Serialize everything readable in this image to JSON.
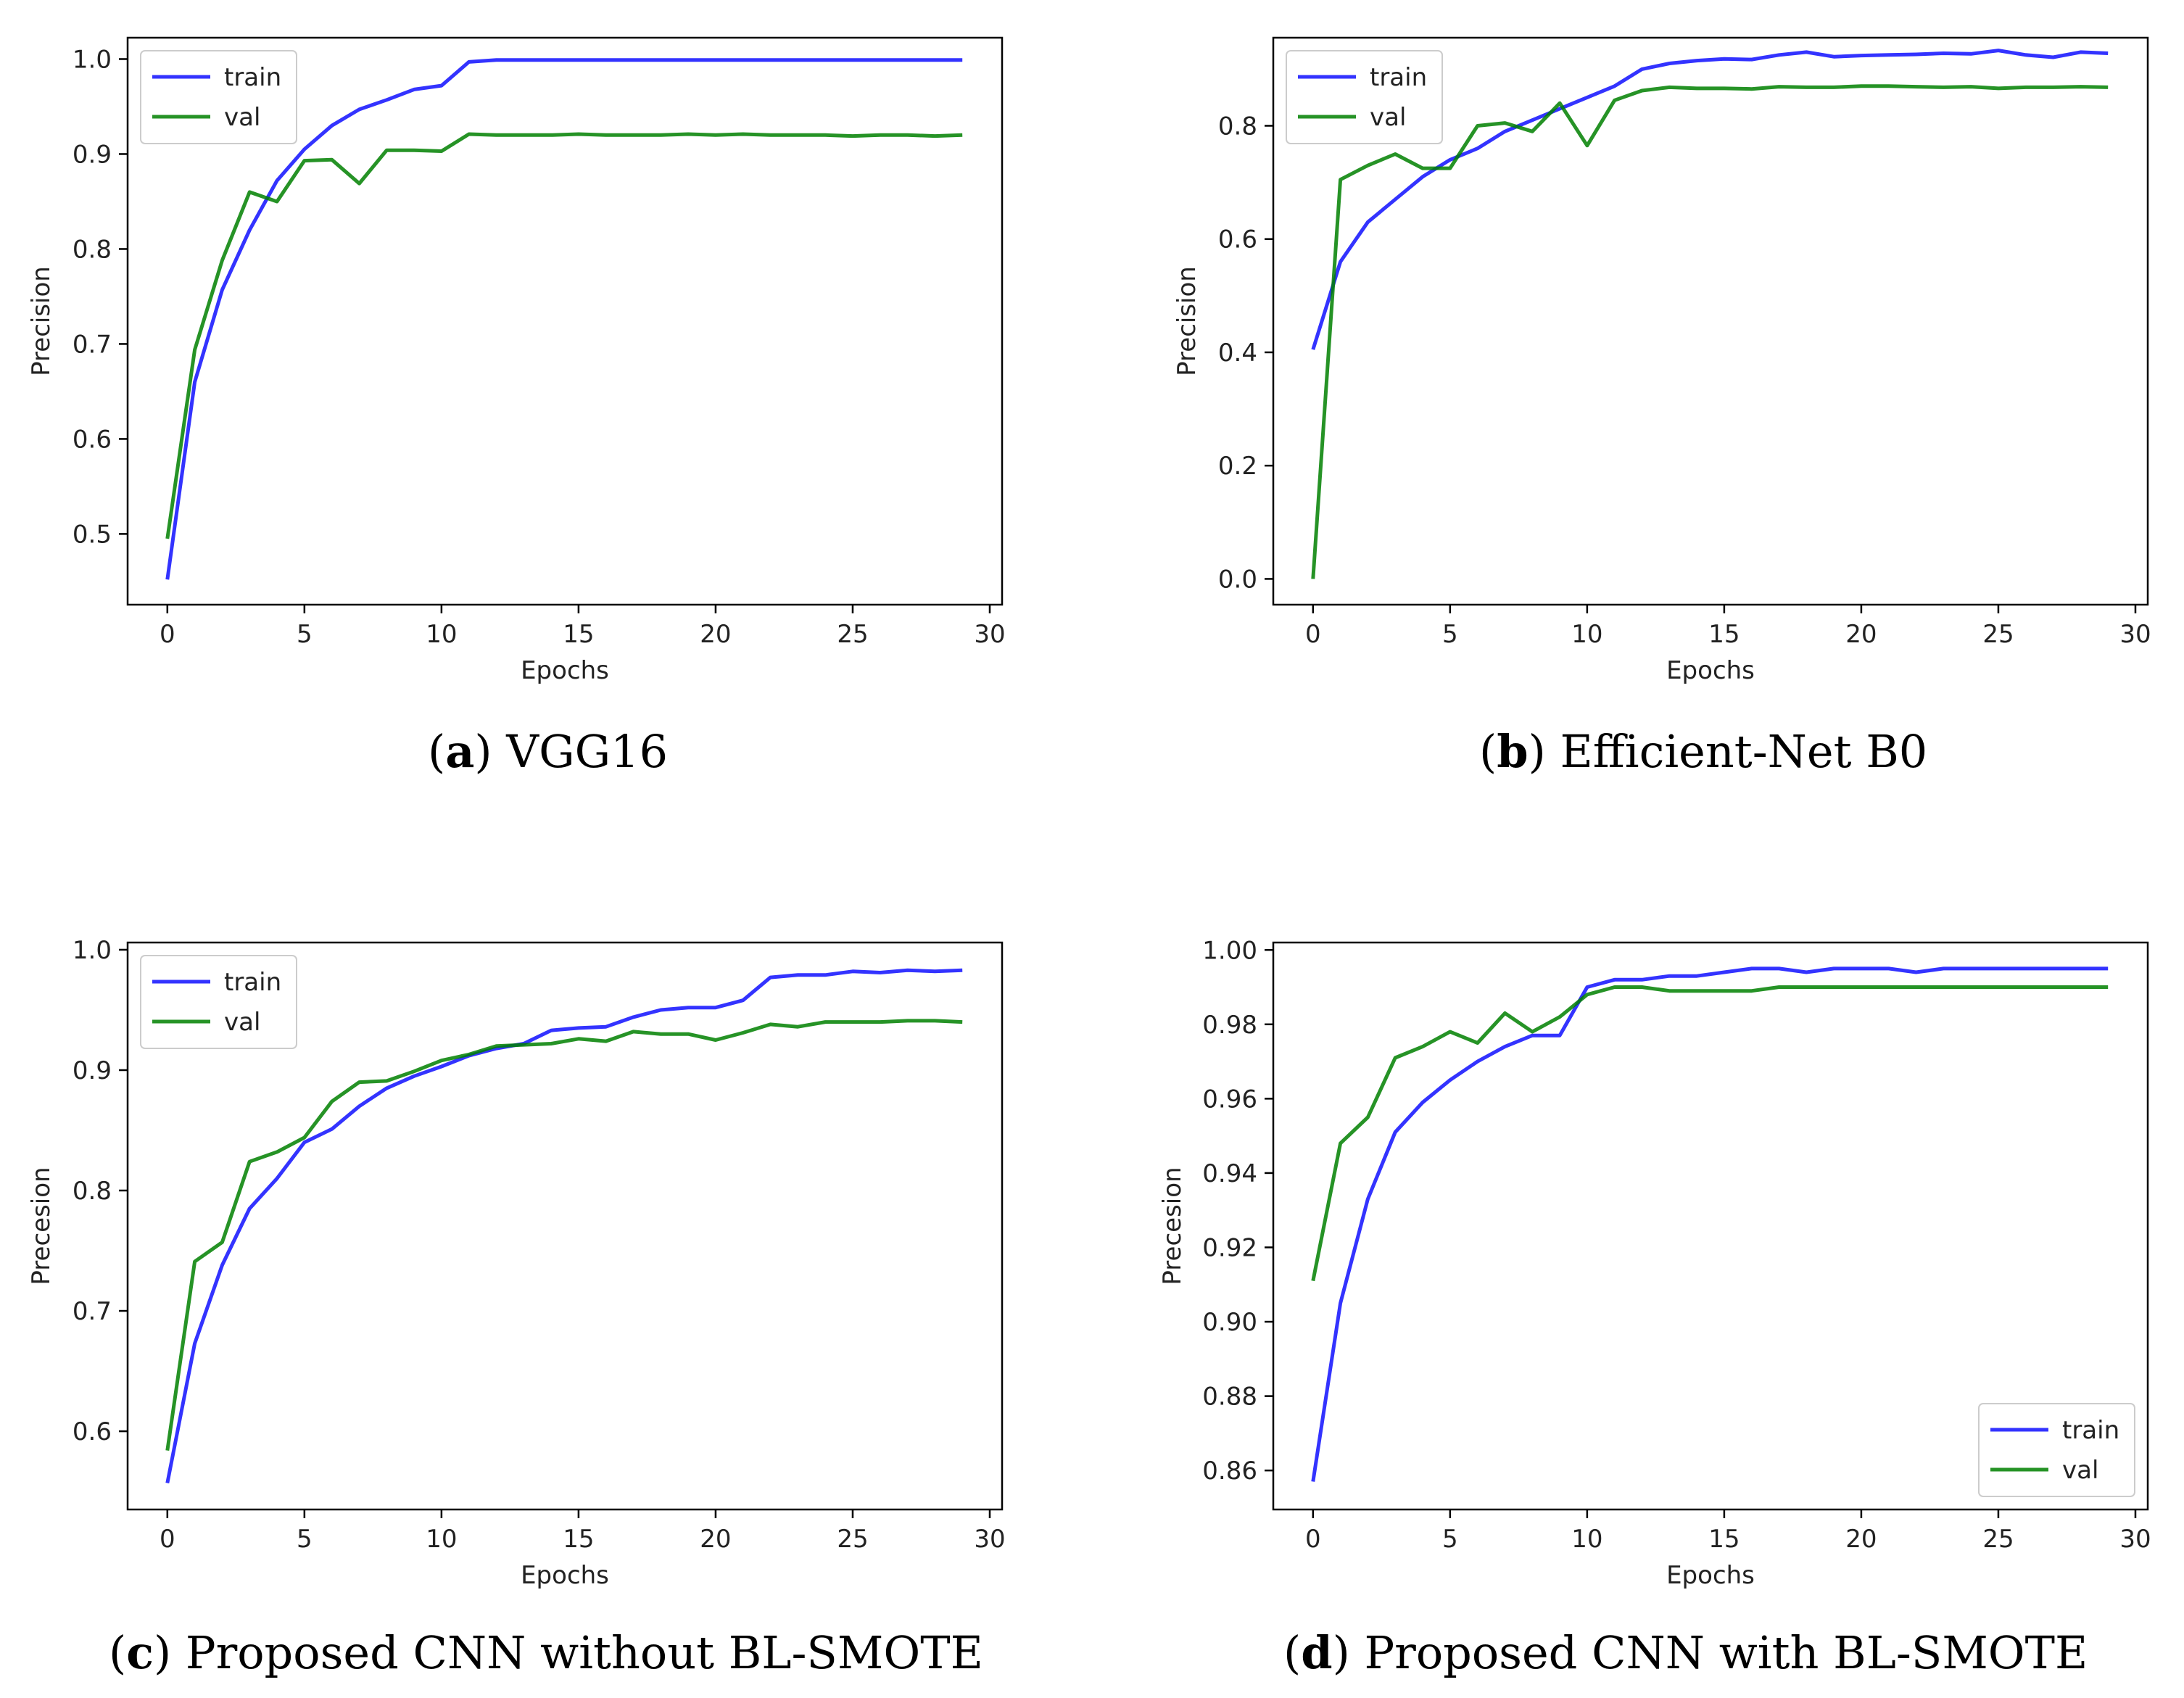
{
  "chart_data": [
    {
      "type": "line",
      "title": "",
      "xlabel": "Epochs",
      "ylabel": "Precision",
      "xlim": [
        -1.45,
        30.45
      ],
      "ylim": [
        0.4255,
        1.0225
      ],
      "xticks": [
        0,
        5,
        10,
        15,
        20,
        25,
        30
      ],
      "yticks": [
        0.5,
        0.6,
        0.7,
        0.8,
        0.9,
        1.0
      ],
      "ytick_labels": [
        "0.5",
        "0.6",
        "0.7",
        "0.8",
        "0.9",
        "1.0"
      ],
      "legend": "top-left",
      "series": [
        {
          "name": "train",
          "color": "#0000ff",
          "x": [
            0,
            1,
            2,
            3,
            4,
            5,
            6,
            7,
            8,
            9,
            10,
            11,
            12,
            13,
            14,
            15,
            16,
            17,
            18,
            19,
            20,
            21,
            22,
            23,
            24,
            25,
            26,
            27,
            28,
            29
          ],
          "values": [
            0.452,
            0.66,
            0.757,
            0.82,
            0.872,
            0.905,
            0.93,
            0.947,
            0.957,
            0.968,
            0.972,
            0.997,
            0.999,
            0.999,
            0.999,
            0.999,
            0.999,
            0.999,
            0.999,
            0.999,
            0.999,
            0.999,
            0.999,
            0.999,
            0.999,
            0.999,
            0.999,
            0.999,
            0.999,
            0.999
          ]
        },
        {
          "name": "val",
          "color": "#008000",
          "x": [
            0,
            1,
            2,
            3,
            4,
            5,
            6,
            7,
            8,
            9,
            10,
            11,
            12,
            13,
            14,
            15,
            16,
            17,
            18,
            19,
            20,
            21,
            22,
            23,
            24,
            25,
            26,
            27,
            28,
            29
          ],
          "values": [
            0.495,
            0.694,
            0.788,
            0.86,
            0.85,
            0.893,
            0.894,
            0.869,
            0.904,
            0.904,
            0.903,
            0.921,
            0.92,
            0.92,
            0.92,
            0.921,
            0.92,
            0.92,
            0.92,
            0.921,
            0.92,
            0.921,
            0.92,
            0.92,
            0.92,
            0.919,
            0.92,
            0.92,
            0.919,
            0.92
          ]
        }
      ],
      "caption_label": "a",
      "caption_text": "VGG16"
    },
    {
      "type": "line",
      "title": "",
      "xlabel": "Epochs",
      "ylabel": "Precision",
      "xlim": [
        -1.45,
        30.45
      ],
      "ylim": [
        -0.0455,
        0.9555
      ],
      "xticks": [
        0,
        5,
        10,
        15,
        20,
        25,
        30
      ],
      "yticks": [
        0.0,
        0.2,
        0.4,
        0.6,
        0.8
      ],
      "ytick_labels": [
        "0.0",
        "0.2",
        "0.4",
        "0.6",
        "0.8"
      ],
      "legend": "top-left",
      "series": [
        {
          "name": "train",
          "color": "#0000ff",
          "x": [
            0,
            1,
            2,
            3,
            4,
            5,
            6,
            7,
            8,
            9,
            10,
            11,
            12,
            13,
            14,
            15,
            16,
            17,
            18,
            19,
            20,
            21,
            22,
            23,
            24,
            25,
            26,
            27,
            28,
            29
          ],
          "values": [
            0.405,
            0.56,
            0.63,
            0.67,
            0.71,
            0.74,
            0.76,
            0.79,
            0.81,
            0.83,
            0.85,
            0.87,
            0.9,
            0.91,
            0.915,
            0.918,
            0.917,
            0.925,
            0.93,
            0.922,
            0.924,
            0.925,
            0.926,
            0.928,
            0.927,
            0.933,
            0.925,
            0.921,
            0.93,
            0.928
          ]
        },
        {
          "name": "val",
          "color": "#008000",
          "x": [
            0,
            1,
            2,
            3,
            4,
            5,
            6,
            7,
            8,
            9,
            10,
            11,
            12,
            13,
            14,
            15,
            16,
            17,
            18,
            19,
            20,
            21,
            22,
            23,
            24,
            25,
            26,
            27,
            28,
            29
          ],
          "values": [
            0.0,
            0.705,
            0.73,
            0.75,
            0.725,
            0.725,
            0.8,
            0.805,
            0.79,
            0.84,
            0.765,
            0.845,
            0.862,
            0.868,
            0.866,
            0.866,
            0.865,
            0.869,
            0.868,
            0.868,
            0.87,
            0.87,
            0.869,
            0.868,
            0.869,
            0.866,
            0.868,
            0.868,
            0.869,
            0.868
          ]
        }
      ],
      "caption_label": "b",
      "caption_text": "Efficient-Net B0"
    },
    {
      "type": "line",
      "title": "",
      "xlabel": "Epochs",
      "ylabel": "Precesion",
      "xlim": [
        -1.45,
        30.45
      ],
      "ylim": [
        0.535,
        1.006
      ],
      "xticks": [
        0,
        5,
        10,
        15,
        20,
        25,
        30
      ],
      "yticks": [
        0.6,
        0.7,
        0.8,
        0.9,
        1.0
      ],
      "ytick_labels": [
        "0.6",
        "0.7",
        "0.8",
        "0.9",
        "1.0"
      ],
      "legend": "top-left",
      "series": [
        {
          "name": "train",
          "color": "#0000ff",
          "x": [
            0,
            1,
            2,
            3,
            4,
            5,
            6,
            7,
            8,
            9,
            10,
            11,
            12,
            13,
            14,
            15,
            16,
            17,
            18,
            19,
            20,
            21,
            22,
            23,
            24,
            25,
            26,
            27,
            28,
            29
          ],
          "values": [
            0.557,
            0.673,
            0.738,
            0.785,
            0.81,
            0.84,
            0.851,
            0.87,
            0.885,
            0.895,
            0.903,
            0.912,
            0.918,
            0.922,
            0.933,
            0.935,
            0.936,
            0.944,
            0.95,
            0.952,
            0.952,
            0.958,
            0.977,
            0.979,
            0.979,
            0.982,
            0.981,
            0.983,
            0.982,
            0.983
          ]
        },
        {
          "name": "val",
          "color": "#008000",
          "x": [
            0,
            1,
            2,
            3,
            4,
            5,
            6,
            7,
            8,
            9,
            10,
            11,
            12,
            13,
            14,
            15,
            16,
            17,
            18,
            19,
            20,
            21,
            22,
            23,
            24,
            25,
            26,
            27,
            28,
            29
          ],
          "values": [
            0.584,
            0.741,
            0.757,
            0.824,
            0.832,
            0.844,
            0.874,
            0.89,
            0.891,
            0.899,
            0.908,
            0.913,
            0.92,
            0.921,
            0.922,
            0.926,
            0.924,
            0.932,
            0.93,
            0.93,
            0.925,
            0.931,
            0.938,
            0.936,
            0.94,
            0.94,
            0.94,
            0.941,
            0.941,
            0.94
          ]
        }
      ],
      "caption_label": "c",
      "caption_text": "Proposed CNN without BL-SMOTE"
    },
    {
      "type": "line",
      "title": "",
      "xlabel": "Epochs",
      "ylabel": "Precesion",
      "xlim": [
        -1.45,
        30.45
      ],
      "ylim": [
        0.8495,
        1.002
      ],
      "xticks": [
        0,
        5,
        10,
        15,
        20,
        25,
        30
      ],
      "yticks": [
        0.86,
        0.88,
        0.9,
        0.92,
        0.94,
        0.96,
        0.98,
        1.0
      ],
      "ytick_labels": [
        "0.86",
        "0.88",
        "0.90",
        "0.92",
        "0.94",
        "0.96",
        "0.98",
        "1.00"
      ],
      "legend": "bottom-right",
      "series": [
        {
          "name": "train",
          "color": "#0000ff",
          "x": [
            0,
            1,
            2,
            3,
            4,
            5,
            6,
            7,
            8,
            9,
            10,
            11,
            12,
            13,
            14,
            15,
            16,
            17,
            18,
            19,
            20,
            21,
            22,
            23,
            24,
            25,
            26,
            27,
            28,
            29
          ],
          "values": [
            0.857,
            0.905,
            0.933,
            0.951,
            0.959,
            0.965,
            0.97,
            0.974,
            0.977,
            0.977,
            0.99,
            0.992,
            0.992,
            0.993,
            0.993,
            0.994,
            0.995,
            0.995,
            0.994,
            0.995,
            0.995,
            0.995,
            0.994,
            0.995,
            0.995,
            0.995,
            0.995,
            0.995,
            0.995,
            0.995
          ]
        },
        {
          "name": "val",
          "color": "#008000",
          "x": [
            0,
            1,
            2,
            3,
            4,
            5,
            6,
            7,
            8,
            9,
            10,
            11,
            12,
            13,
            14,
            15,
            16,
            17,
            18,
            19,
            20,
            21,
            22,
            23,
            24,
            25,
            26,
            27,
            28,
            29
          ],
          "values": [
            0.911,
            0.948,
            0.955,
            0.971,
            0.974,
            0.978,
            0.975,
            0.983,
            0.978,
            0.982,
            0.988,
            0.99,
            0.99,
            0.989,
            0.989,
            0.989,
            0.989,
            0.99,
            0.99,
            0.99,
            0.99,
            0.99,
            0.99,
            0.99,
            0.99,
            0.99,
            0.99,
            0.99,
            0.99,
            0.99
          ]
        }
      ],
      "caption_label": "d",
      "caption_text": "Proposed CNN with BL-SMOTE"
    }
  ]
}
